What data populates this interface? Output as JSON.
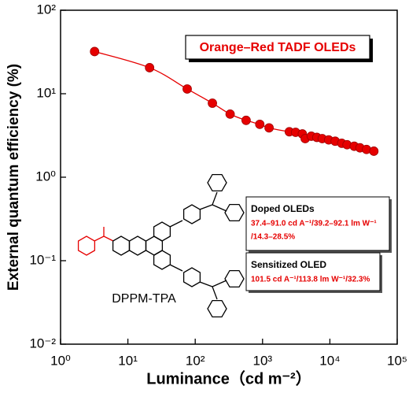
{
  "chart_data": {
    "type": "line",
    "xlabel": "Luminance（cd m⁻²）",
    "ylabel": "External quantum efficiency (%)",
    "log_x": true,
    "log_y": true,
    "xlim": [
      1,
      100000
    ],
    "ylim": [
      0.01,
      100
    ],
    "xticks": [
      {
        "value": 1,
        "label": "10⁰"
      },
      {
        "value": 10,
        "label": "10¹"
      },
      {
        "value": 100,
        "label": "10²"
      },
      {
        "value": 1000,
        "label": "10³"
      },
      {
        "value": 10000,
        "label": "10⁴"
      },
      {
        "value": 100000,
        "label": "10⁵"
      }
    ],
    "yticks": [
      {
        "value": 0.01,
        "label": "10⁻²"
      },
      {
        "value": 0.1,
        "label": "10⁻¹"
      },
      {
        "value": 1,
        "label": "10⁰"
      },
      {
        "value": 10,
        "label": "10¹"
      },
      {
        "value": 100,
        "label": "10²"
      }
    ],
    "series": [
      {
        "name": "Orange–Red TADF OLEDs",
        "color": "#e60000",
        "x": [
          3.2,
          21,
          76,
          180,
          330,
          570,
          910,
          1250,
          2500,
          3100,
          3900,
          4300,
          5300,
          6400,
          7700,
          9600,
          12000,
          15000,
          18000,
          23000,
          28000,
          35000,
          45000
        ],
        "values": [
          32,
          20.5,
          11.4,
          7.7,
          5.7,
          4.8,
          4.3,
          3.9,
          3.5,
          3.45,
          3.3,
          2.9,
          3.1,
          3.0,
          2.9,
          2.8,
          2.7,
          2.55,
          2.45,
          2.35,
          2.25,
          2.15,
          2.05
        ]
      }
    ],
    "annotations": [
      {
        "title": "Doped OLEDs",
        "lines": [
          "37.4–91.0 cd A⁻¹/39.2–92.1 lm W⁻¹",
          "/14.3–28.5%"
        ]
      },
      {
        "title": "Sensitized OLED",
        "lines": [
          "101.5 cd A⁻¹/113.8 lm W⁻¹/32.3%"
        ]
      }
    ],
    "molecule_label": "DPPM-TPA"
  }
}
